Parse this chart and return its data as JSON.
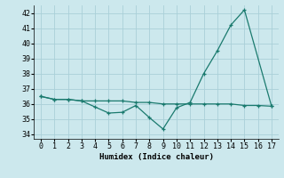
{
  "xlabel": "Humidex (Indice chaleur)",
  "background_color": "#cce8ed",
  "grid_color": "#aad0d8",
  "line_color": "#1a7a6e",
  "xlim": [
    -0.5,
    17.5
  ],
  "ylim": [
    33.7,
    42.5
  ],
  "yticks": [
    34,
    35,
    36,
    37,
    38,
    39,
    40,
    41,
    42
  ],
  "xticks": [
    0,
    1,
    2,
    3,
    4,
    5,
    6,
    7,
    8,
    9,
    10,
    11,
    12,
    13,
    14,
    15,
    16,
    17
  ],
  "series1_x": [
    0,
    1,
    2,
    3,
    4,
    5,
    6,
    7,
    8,
    9,
    10,
    11,
    12,
    13,
    14,
    15,
    16,
    17
  ],
  "series1_y": [
    36.5,
    36.3,
    36.3,
    36.2,
    36.2,
    36.2,
    36.2,
    36.1,
    36.1,
    36.0,
    36.0,
    36.0,
    36.0,
    36.0,
    36.0,
    35.9,
    35.9,
    35.85
  ],
  "series2_x": [
    0,
    1,
    2,
    3,
    4,
    5,
    6,
    7,
    8,
    9,
    10,
    11,
    12,
    13,
    14,
    15,
    17
  ],
  "series2_y": [
    36.5,
    36.3,
    36.3,
    36.2,
    35.8,
    35.4,
    35.45,
    35.9,
    35.1,
    34.35,
    35.75,
    36.1,
    38.0,
    39.5,
    41.2,
    42.2,
    35.85
  ]
}
